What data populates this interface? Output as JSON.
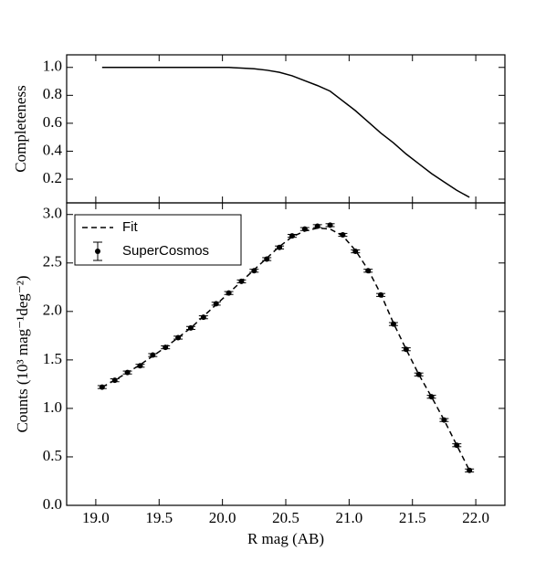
{
  "chart_data": [
    {
      "type": "line",
      "ylabel": "Completeness",
      "color": "#000000",
      "x": [
        19.05,
        19.15,
        19.25,
        19.35,
        19.45,
        19.55,
        19.65,
        19.75,
        19.85,
        19.95,
        20.05,
        20.15,
        20.25,
        20.35,
        20.45,
        20.55,
        20.65,
        20.75,
        20.85,
        20.95,
        21.05,
        21.15,
        21.25,
        21.35,
        21.45,
        21.55,
        21.65,
        21.75,
        21.85,
        21.95
      ],
      "values": [
        1.0,
        1.0,
        1.0,
        1.0,
        1.0,
        1.0,
        1.0,
        1.0,
        1.0,
        1.0,
        1.0,
        0.995,
        0.99,
        0.98,
        0.965,
        0.94,
        0.905,
        0.87,
        0.83,
        0.76,
        0.69,
        0.61,
        0.53,
        0.46,
        0.38,
        0.31,
        0.24,
        0.18,
        0.12,
        0.07
      ],
      "ylim": [
        0.03,
        1.09
      ],
      "yticks": [
        0.2,
        0.4,
        0.6,
        0.8,
        {
          "value": 1.0,
          "label": "1.0"
        }
      ]
    },
    {
      "type": "errorbar",
      "xlabel": "R mag (AB)",
      "ylabel": "Counts (10³ mag⁻¹deg⁻²)",
      "legend": "upper left",
      "x": [
        19.05,
        19.15,
        19.25,
        19.35,
        19.45,
        19.55,
        19.65,
        19.75,
        19.85,
        19.95,
        20.05,
        20.15,
        20.25,
        20.35,
        20.45,
        20.55,
        20.65,
        20.75,
        20.85,
        20.95,
        21.05,
        21.15,
        21.25,
        21.35,
        21.45,
        21.55,
        21.65,
        21.75,
        21.85,
        21.95
      ],
      "series": [
        {
          "name": "Fit",
          "color": "#000000",
          "style": "dashed",
          "values": [
            1.22,
            1.29,
            1.37,
            1.45,
            1.54,
            1.63,
            1.73,
            1.83,
            1.95,
            2.07,
            2.19,
            2.31,
            2.43,
            2.55,
            2.67,
            2.77,
            2.83,
            2.86,
            2.85,
            2.78,
            2.63,
            2.43,
            2.18,
            1.88,
            1.61,
            1.35,
            1.12,
            0.88,
            0.62,
            0.36
          ]
        },
        {
          "name": "SuperCosmos",
          "color": "#000000",
          "style": "errorbar",
          "values": [
            1.22,
            1.29,
            1.37,
            1.44,
            1.55,
            1.63,
            1.73,
            1.83,
            1.94,
            2.08,
            2.19,
            2.31,
            2.42,
            2.54,
            2.66,
            2.78,
            2.85,
            2.88,
            2.89,
            2.79,
            2.62,
            2.42,
            2.17,
            1.87,
            1.61,
            1.35,
            1.12,
            0.88,
            0.62,
            0.36
          ],
          "errors": [
            0.015,
            0.015,
            0.015,
            0.015,
            0.015,
            0.015,
            0.015,
            0.015,
            0.015,
            0.015,
            0.015,
            0.015,
            0.015,
            0.015,
            0.015,
            0.015,
            0.015,
            0.015,
            0.015,
            0.015,
            0.015,
            0.015,
            0.015,
            0.015,
            0.015,
            0.015,
            0.015,
            0.015,
            0.015,
            0.015
          ]
        }
      ],
      "xlim": [
        18.77,
        22.23
      ],
      "xticks": [
        {
          "value": 19.0,
          "label": "19.0"
        },
        19.5,
        {
          "value": 20.0,
          "label": "20.0"
        },
        20.5,
        {
          "value": 21.0,
          "label": "21.0"
        },
        21.5,
        {
          "value": 22.0,
          "label": "22.0"
        }
      ],
      "ylim": [
        0,
        3.12
      ],
      "yticks": [
        {
          "value": 0,
          "label": "0.0"
        },
        0.5,
        {
          "value": 1.0,
          "label": "1.0"
        },
        1.5,
        {
          "value": 2.0,
          "label": "2.0"
        },
        2.5,
        {
          "value": 3.0,
          "label": "3.0"
        }
      ]
    }
  ]
}
